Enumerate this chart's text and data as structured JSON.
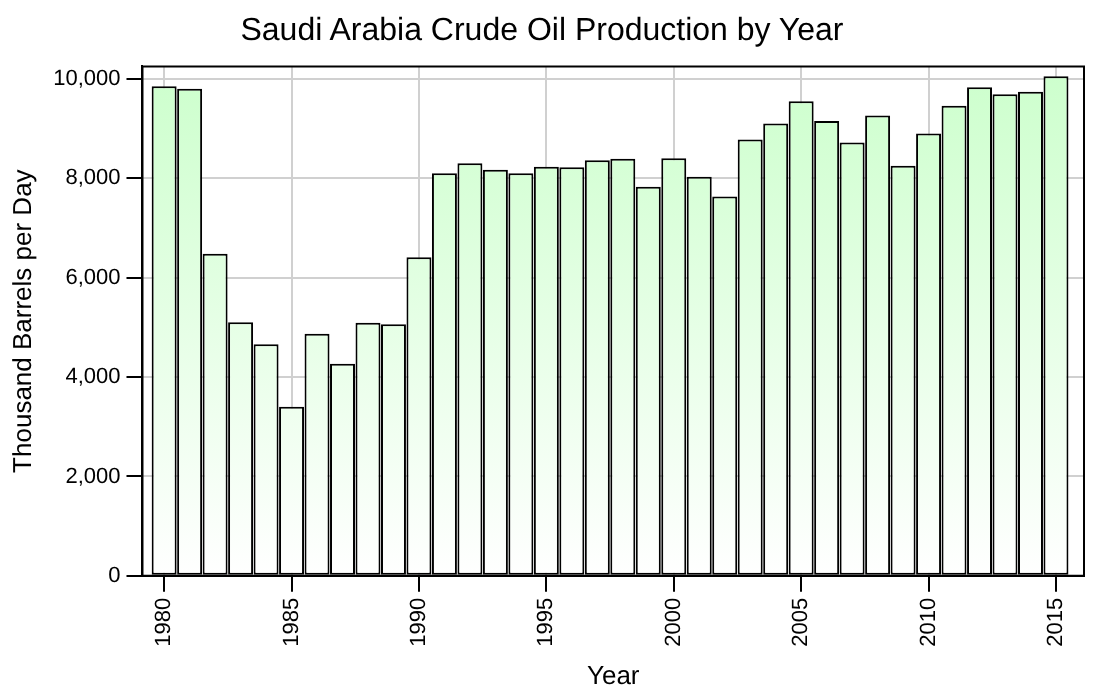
{
  "chart_data": {
    "type": "bar",
    "title": "Saudi Arabia Crude Oil Production by Year",
    "xlabel": "Year",
    "ylabel": "Thousand Barrels per Day",
    "x": [
      1980,
      1981,
      1982,
      1983,
      1984,
      1985,
      1986,
      1987,
      1988,
      1989,
      1990,
      1991,
      1992,
      1993,
      1994,
      1995,
      1996,
      1997,
      1998,
      1999,
      2000,
      2001,
      2002,
      2003,
      2004,
      2005,
      2006,
      2007,
      2008,
      2009,
      2010,
      2011,
      2012,
      2013,
      2014,
      2015
    ],
    "values": [
      9850,
      9800,
      6480,
      5100,
      4660,
      3400,
      4870,
      4270,
      5090,
      5060,
      6410,
      8100,
      8300,
      8170,
      8100,
      8230,
      8220,
      8360,
      8390,
      7830,
      8400,
      8030,
      7630,
      8780,
      9100,
      9550,
      9150,
      8720,
      9260,
      8250,
      8900,
      9460,
      9830,
      9690,
      9740,
      10050
    ],
    "color": "#ccffcc",
    "xlim": [
      1979.15,
      2016.1
    ],
    "xticks": [
      1980,
      1985,
      1990,
      1995,
      2000,
      2005,
      2010,
      2015
    ],
    "ylim": [
      0,
      10250
    ],
    "yticks": [
      {
        "value": 0,
        "label": "0"
      },
      {
        "value": 2000,
        "label": "2,000"
      },
      {
        "value": 4000,
        "label": "4,000"
      },
      {
        "value": 6000,
        "label": "6,000"
      },
      {
        "value": 8000,
        "label": "8,000"
      },
      {
        "value": 10000,
        "label": "10,000"
      }
    ],
    "grid": true,
    "legend": false
  }
}
